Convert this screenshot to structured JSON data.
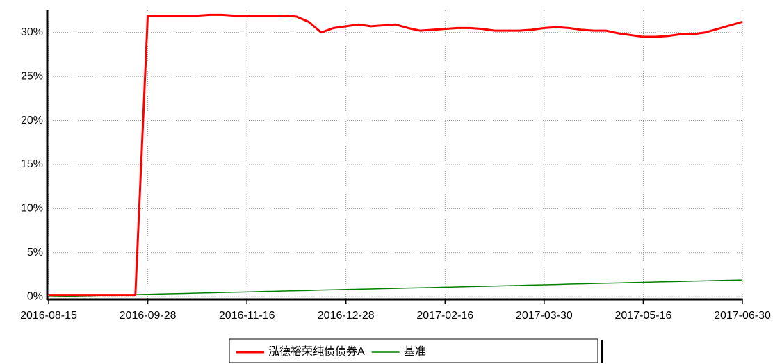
{
  "chart_data": {
    "type": "line",
    "categories": [
      "2016-08-15",
      null,
      null,
      null,
      null,
      null,
      null,
      null,
      "2016-09-28",
      null,
      null,
      null,
      null,
      null,
      null,
      null,
      "2016-11-16",
      null,
      null,
      null,
      null,
      null,
      null,
      null,
      "2016-12-28",
      null,
      null,
      null,
      null,
      null,
      null,
      null,
      "2017-02-16",
      null,
      null,
      null,
      null,
      null,
      null,
      null,
      "2017-03-30",
      null,
      null,
      null,
      null,
      null,
      null,
      null,
      "2017-05-16",
      null,
      null,
      null,
      null,
      null,
      null,
      null,
      "2017-06-30"
    ],
    "series": [
      {
        "name": "泓德裕荣纯债债券A",
        "color": "#ff0000",
        "values": [
          0.2,
          0.2,
          0.2,
          0.2,
          0.2,
          0.2,
          0.2,
          0.2,
          31.9,
          31.9,
          31.9,
          31.9,
          31.9,
          32.0,
          32.0,
          31.9,
          31.9,
          31.9,
          31.9,
          31.9,
          31.8,
          31.2,
          30.0,
          30.5,
          30.7,
          30.9,
          30.7,
          30.8,
          30.9,
          30.5,
          30.2,
          30.3,
          30.4,
          30.5,
          30.5,
          30.4,
          30.2,
          30.2,
          30.2,
          30.3,
          30.5,
          30.6,
          30.5,
          30.3,
          30.2,
          30.2,
          29.9,
          29.7,
          29.5,
          29.5,
          29.6,
          29.8,
          29.8,
          30.0,
          30.4,
          30.8,
          31.2
        ]
      },
      {
        "name": "基准",
        "color": "#008000",
        "values": [
          0,
          0.03,
          0.07,
          0.1,
          0.14,
          0.17,
          0.2,
          0.24,
          0.27,
          0.31,
          0.34,
          0.37,
          0.41,
          0.44,
          0.48,
          0.51,
          0.54,
          0.58,
          0.61,
          0.65,
          0.68,
          0.71,
          0.75,
          0.78,
          0.82,
          0.85,
          0.88,
          0.92,
          0.95,
          0.99,
          1.02,
          1.05,
          1.09,
          1.12,
          1.16,
          1.19,
          1.22,
          1.26,
          1.29,
          1.33,
          1.36,
          1.39,
          1.43,
          1.46,
          1.5,
          1.53,
          1.56,
          1.6,
          1.63,
          1.67,
          1.7,
          1.73,
          1.77,
          1.8,
          1.84,
          1.87,
          1.9
        ]
      }
    ],
    "ylim": [
      -0.3,
      32.5
    ],
    "yticks": [
      {
        "value": 0,
        "label": "0%"
      },
      {
        "value": 5,
        "label": "5%"
      },
      {
        "value": 10,
        "label": "10%"
      },
      {
        "value": 15,
        "label": "15%"
      },
      {
        "value": 20,
        "label": "20%"
      },
      {
        "value": 25,
        "label": "25%"
      },
      {
        "value": 30,
        "label": "30%"
      }
    ],
    "grid": true
  }
}
